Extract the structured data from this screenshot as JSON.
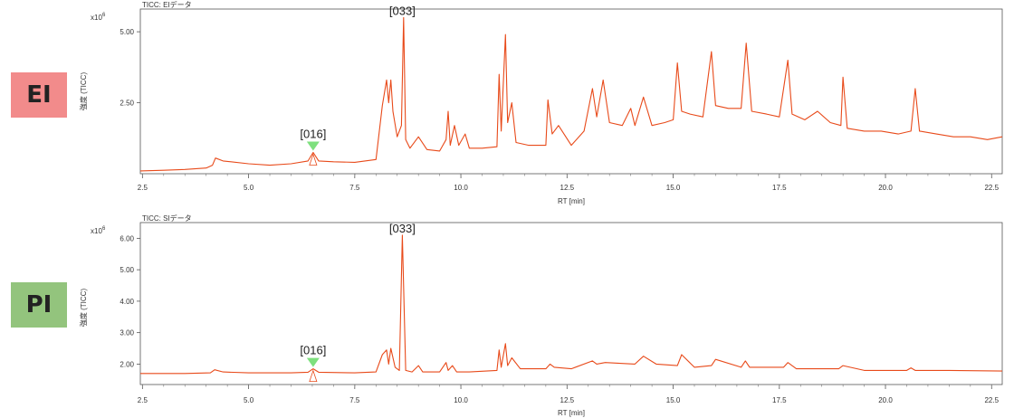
{
  "badges": [
    {
      "label": "EI",
      "color": "#f28b8b"
    },
    {
      "label": "PI",
      "color": "#93c47d"
    }
  ],
  "trace_color": "#e84a1a",
  "marker_color": "#7ee07e",
  "chart_data": [
    {
      "type": "line",
      "title": "TICC: EIデータ",
      "xlabel": "RT [min]",
      "ylabel": "強度 (TICC)",
      "y_multiplier": "x10",
      "y_multiplier_exp": "6",
      "xlim": [
        2.45,
        22.75
      ],
      "ylim": [
        0,
        5.8
      ],
      "xticks": [
        2.5,
        5.0,
        7.5,
        10.0,
        12.5,
        15.0,
        17.5,
        20.0,
        22.5
      ],
      "xtick_labels": [
        "2.5",
        "5.0",
        "7.5",
        "10.0",
        "12.5",
        "15.0",
        "17.5",
        "20.0",
        "22.5"
      ],
      "yticks": [
        2.5,
        5.0
      ],
      "ytick_labels": [
        "2.50",
        "5.00"
      ],
      "series": [
        {
          "x": [
            2.45,
            3.0,
            3.5,
            4.0,
            4.15,
            4.22,
            4.4,
            5.0,
            5.5,
            6.0,
            6.4,
            6.52,
            6.65,
            7.0,
            7.5,
            8.0,
            8.15,
            8.25,
            8.3,
            8.35,
            8.4,
            8.5,
            8.6,
            8.65,
            8.7,
            8.8,
            9.0,
            9.2,
            9.5,
            9.65,
            9.7,
            9.75,
            9.85,
            9.95,
            10.1,
            10.2,
            10.5,
            10.85,
            10.9,
            10.95,
            11.05,
            11.1,
            11.2,
            11.3,
            11.6,
            12.0,
            12.05,
            12.15,
            12.3,
            12.6,
            12.9,
            13.1,
            13.2,
            13.35,
            13.5,
            13.8,
            14.0,
            14.1,
            14.3,
            14.5,
            14.8,
            15.0,
            15.1,
            15.2,
            15.4,
            15.7,
            15.9,
            16.0,
            16.3,
            16.6,
            16.72,
            16.85,
            17.2,
            17.5,
            17.7,
            17.8,
            18.1,
            18.4,
            18.7,
            18.95,
            19.0,
            19.1,
            19.5,
            19.9,
            20.3,
            20.6,
            20.7,
            20.8,
            21.2,
            21.6,
            22.0,
            22.4,
            22.75
          ],
          "y": [
            0.1,
            0.12,
            0.15,
            0.2,
            0.3,
            0.55,
            0.45,
            0.35,
            0.3,
            0.35,
            0.45,
            0.75,
            0.45,
            0.42,
            0.4,
            0.5,
            2.4,
            3.3,
            2.5,
            3.3,
            2.2,
            1.3,
            1.7,
            5.5,
            1.2,
            0.9,
            1.3,
            0.85,
            0.8,
            1.2,
            2.2,
            1.0,
            1.7,
            1.0,
            1.4,
            0.9,
            0.9,
            0.95,
            3.5,
            1.5,
            4.9,
            1.8,
            2.5,
            1.1,
            1.0,
            1.0,
            2.6,
            1.4,
            1.7,
            1.0,
            1.5,
            3.0,
            2.0,
            3.3,
            1.8,
            1.7,
            2.3,
            1.7,
            2.7,
            1.7,
            1.8,
            1.9,
            3.9,
            2.2,
            2.1,
            2.0,
            4.3,
            2.4,
            2.3,
            2.3,
            4.6,
            2.2,
            2.1,
            2.0,
            4.0,
            2.1,
            1.9,
            2.2,
            1.8,
            1.7,
            3.4,
            1.6,
            1.5,
            1.5,
            1.4,
            1.5,
            3.0,
            1.5,
            1.4,
            1.3,
            1.3,
            1.2,
            1.3
          ]
        }
      ],
      "annotations": [
        {
          "label": "[033]",
          "x": 8.62,
          "y": 5.5
        },
        {
          "label": "[016]",
          "x": 6.52,
          "y": 0.75
        }
      ],
      "marker": {
        "x": 6.52,
        "y": 0.75
      }
    },
    {
      "type": "line",
      "title": "TICC: SIデータ",
      "xlabel": "RT [min]",
      "ylabel": "強度 (TICC)",
      "y_multiplier": "x10",
      "y_multiplier_exp": "6",
      "xlim": [
        2.45,
        22.75
      ],
      "ylim": [
        1.35,
        6.5
      ],
      "xticks": [
        2.5,
        5.0,
        7.5,
        10.0,
        12.5,
        15.0,
        17.5,
        20.0,
        22.5
      ],
      "xtick_labels": [
        "2.5",
        "5.0",
        "7.5",
        "10.0",
        "12.5",
        "15.0",
        "17.5",
        "20.0",
        "22.5"
      ],
      "yticks": [
        2.0,
        3.0,
        4.0,
        5.0,
        6.0
      ],
      "ytick_labels": [
        "2.00",
        "3.00",
        "4.00",
        "5.00",
        "6.00"
      ],
      "series": [
        {
          "x": [
            2.45,
            3.5,
            4.1,
            4.2,
            4.4,
            5.0,
            6.0,
            6.4,
            6.52,
            6.65,
            7.5,
            8.0,
            8.15,
            8.25,
            8.3,
            8.35,
            8.45,
            8.55,
            8.62,
            8.7,
            8.85,
            9.0,
            9.1,
            9.5,
            9.65,
            9.7,
            9.8,
            9.9,
            10.2,
            10.85,
            10.9,
            10.95,
            11.05,
            11.1,
            11.2,
            11.4,
            12.0,
            12.1,
            12.2,
            12.6,
            13.1,
            13.2,
            13.4,
            14.1,
            14.3,
            14.6,
            15.1,
            15.2,
            15.5,
            15.9,
            16.0,
            16.6,
            16.7,
            16.8,
            17.6,
            17.7,
            17.9,
            18.9,
            19.0,
            19.5,
            20.5,
            20.6,
            20.7,
            21.5,
            22.75
          ],
          "y": [
            1.7,
            1.7,
            1.72,
            1.82,
            1.75,
            1.72,
            1.72,
            1.74,
            1.85,
            1.74,
            1.72,
            1.75,
            2.3,
            2.45,
            2.0,
            2.5,
            1.9,
            1.8,
            6.1,
            1.8,
            1.75,
            1.95,
            1.75,
            1.75,
            2.05,
            1.8,
            1.95,
            1.75,
            1.75,
            1.8,
            2.45,
            1.9,
            2.65,
            1.95,
            2.2,
            1.85,
            1.85,
            2.0,
            1.9,
            1.85,
            2.1,
            2.0,
            2.05,
            2.0,
            2.25,
            2.0,
            1.95,
            2.3,
            1.9,
            1.95,
            2.15,
            1.9,
            2.1,
            1.9,
            1.9,
            2.05,
            1.85,
            1.85,
            1.95,
            1.8,
            1.8,
            1.88,
            1.8,
            1.8,
            1.78
          ]
        }
      ],
      "annotations": [
        {
          "label": "[033]",
          "x": 8.62,
          "y": 6.1
        },
        {
          "label": "[016]",
          "x": 6.52,
          "y": 1.85
        }
      ],
      "marker": {
        "x": 6.52,
        "y": 1.85
      }
    }
  ]
}
